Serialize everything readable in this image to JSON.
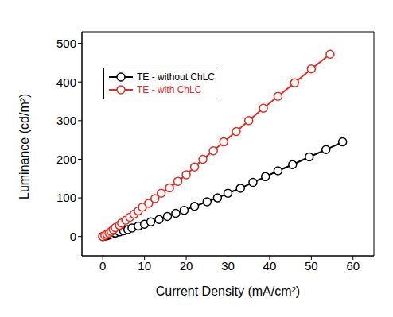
{
  "chart_data": {
    "type": "line",
    "x_label": "Current Density (mA/cm²)",
    "y_label": "Luminance (cd/m²)",
    "xlim": [
      -5,
      65
    ],
    "xticks": [
      0,
      10,
      20,
      30,
      40,
      50,
      60
    ],
    "ylim": [
      -50,
      530
    ],
    "yticks": [
      0,
      100,
      200,
      300,
      400,
      500
    ],
    "grid": false,
    "legend": "upper left",
    "series": [
      {
        "name": "TE - without ChLC",
        "color": "#000000",
        "marker": "circle",
        "line_style": "solid",
        "x": [
          0,
          0.5,
          1,
          1.5,
          2,
          3,
          4,
          5,
          6,
          7,
          8.5,
          10,
          11.5,
          13.5,
          15.5,
          17.5,
          19.5,
          22,
          25,
          27.5,
          30,
          33,
          36,
          39,
          42,
          45.5,
          49.5,
          53.5,
          57.5
        ],
        "values": [
          0,
          1,
          2,
          4,
          6,
          9,
          12,
          15,
          18,
          22,
          27,
          32,
          38,
          44,
          52,
          60,
          68,
          78,
          90,
          100,
          112,
          125,
          140,
          155,
          170,
          186,
          206,
          225,
          245
        ]
      },
      {
        "name": "TE - with ChLC",
        "color": "#e8291c",
        "marker": "circle",
        "line_style": "solid",
        "x": [
          0,
          0.5,
          1,
          1.5,
          2,
          2.5,
          3,
          4,
          4.5,
          5.5,
          6.5,
          7.5,
          8.5,
          9.5,
          11,
          12.5,
          14,
          16,
          18,
          20,
          22,
          24,
          26.5,
          29,
          32,
          35,
          38.5,
          42,
          46,
          50,
          54.5
        ],
        "values": [
          0,
          3,
          6,
          9,
          13,
          18,
          23,
          29,
          35,
          42,
          50,
          58,
          66,
          76,
          86,
          98,
          112,
          126,
          143,
          160,
          180,
          200,
          222,
          245,
          272,
          300,
          332,
          363,
          398,
          434,
          472
        ]
      }
    ]
  }
}
